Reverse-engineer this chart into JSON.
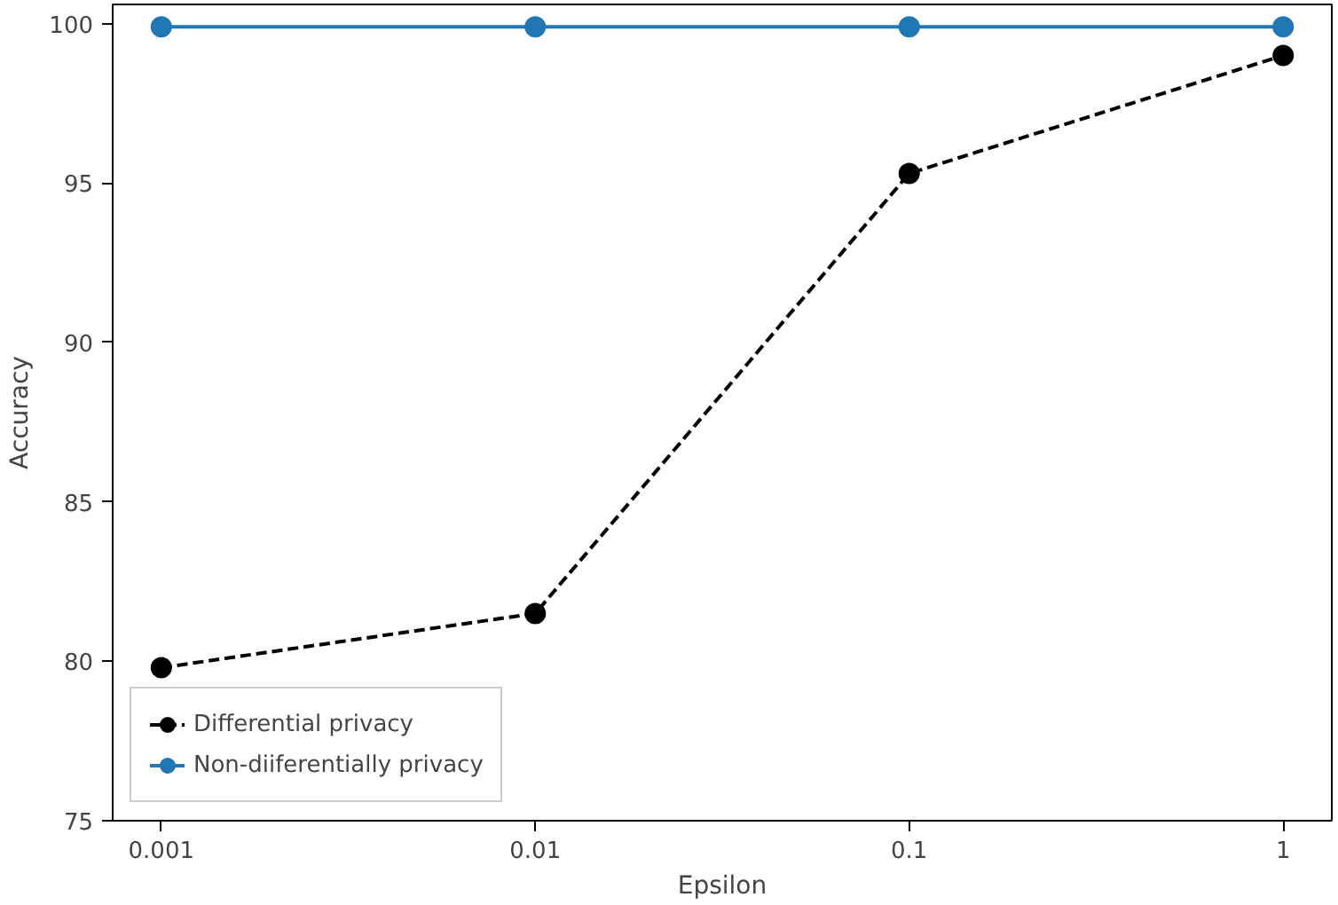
{
  "chart_data": {
    "type": "line",
    "xlabel": "Epsilon",
    "ylabel": "Accuracy",
    "categories": [
      "0.001",
      "0.01",
      "0.1",
      "1"
    ],
    "series": [
      {
        "name": "Differential privacy",
        "color": "#000000",
        "values": [
          79.8,
          81.5,
          95.3,
          99.0
        ],
        "line_style": "dashed"
      },
      {
        "name": "Non-diiferentially privacy",
        "color": "#1f77b4",
        "values": [
          99.9,
          99.9,
          99.9,
          99.9
        ],
        "line_style": "solid"
      }
    ],
    "ylim": [
      75,
      100.6
    ],
    "yticks": [
      75,
      80,
      85,
      90,
      95,
      100
    ],
    "marker": "circle",
    "legend": "bottom left",
    "grid": false
  }
}
